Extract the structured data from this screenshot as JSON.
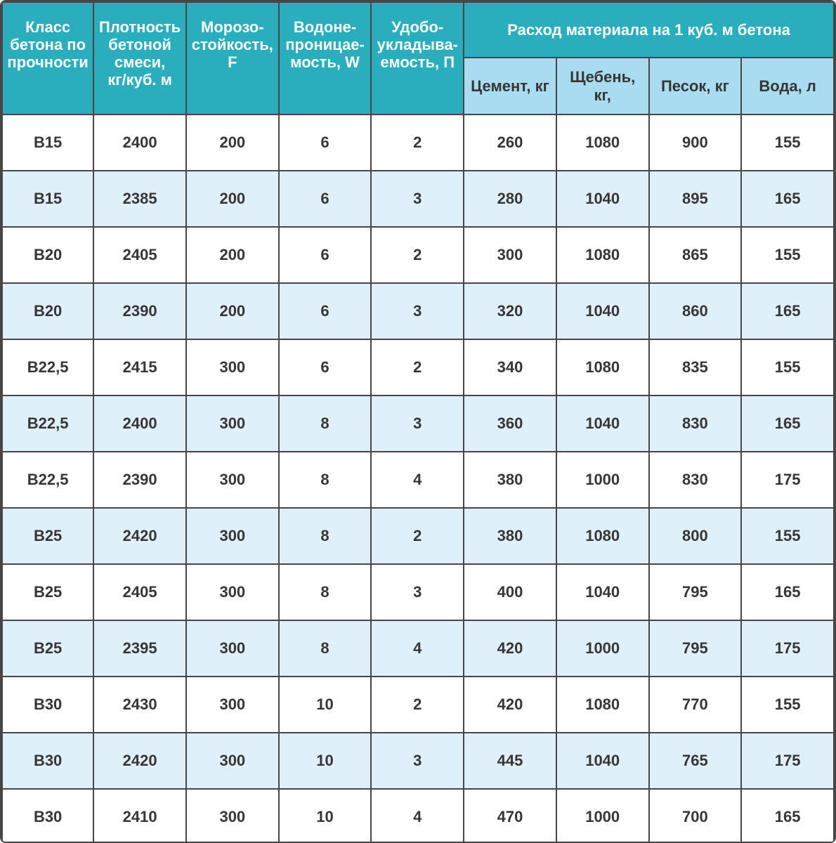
{
  "colors": {
    "header_teal": "#2aadbd",
    "subheader_blue": "#a9dbf1",
    "row_stripe_blue": "#dff0fa",
    "row_white": "#ffffff",
    "grid_border": "#464646",
    "header_text": "#ffffff",
    "cell_text": "#363636"
  },
  "table": {
    "headers": [
      "Класс\nбетона по\nпрочности",
      "Плотность\nбетоной\nсмеси,\nкг/куб. м",
      "Морозо-\nстойкость,\nF",
      "Водоне-\nпроницае-\nмость, W",
      "Удобо-\nукладыва-\nемость, П"
    ],
    "group_header": "Расход материала на 1 куб. м бетона",
    "sub_headers": [
      "Цемент, кг",
      "Щебень, кг,",
      "Песок, кг",
      "Вода, л"
    ],
    "rows": [
      [
        "В15",
        "2400",
        "200",
        "6",
        "2",
        "260",
        "1080",
        "900",
        "155"
      ],
      [
        "В15",
        "2385",
        "200",
        "6",
        "3",
        "280",
        "1040",
        "895",
        "165"
      ],
      [
        "В20",
        "2405",
        "200",
        "6",
        "2",
        "300",
        "1080",
        "865",
        "155"
      ],
      [
        "В20",
        "2390",
        "200",
        "6",
        "3",
        "320",
        "1040",
        "860",
        "165"
      ],
      [
        "В22,5",
        "2415",
        "300",
        "6",
        "2",
        "340",
        "1080",
        "835",
        "155"
      ],
      [
        "В22,5",
        "2400",
        "300",
        "8",
        "3",
        "360",
        "1040",
        "830",
        "165"
      ],
      [
        "В22,5",
        "2390",
        "300",
        "8",
        "4",
        "380",
        "1000",
        "830",
        "175"
      ],
      [
        "В25",
        "2420",
        "300",
        "8",
        "2",
        "380",
        "1080",
        "800",
        "155"
      ],
      [
        "В25",
        "2405",
        "300",
        "8",
        "3",
        "400",
        "1040",
        "795",
        "165"
      ],
      [
        "В25",
        "2395",
        "300",
        "8",
        "4",
        "420",
        "1000",
        "795",
        "175"
      ],
      [
        "В30",
        "2430",
        "300",
        "10",
        "2",
        "420",
        "1080",
        "770",
        "155"
      ],
      [
        "В30",
        "2420",
        "300",
        "10",
        "3",
        "445",
        "1040",
        "765",
        "175"
      ],
      [
        "В30",
        "2410",
        "300",
        "10",
        "4",
        "470",
        "1000",
        "700",
        "165"
      ]
    ]
  },
  "chart_data": {
    "type": "table",
    "title": "Расход материала на 1 куб. м бетона",
    "columns": [
      "Класс бетона по прочности",
      "Плотность бетоной смеси, кг/куб. м",
      "Морозостойкость, F",
      "Водонепроницаемость, W",
      "Удобоукладываемость, П",
      "Цемент, кг",
      "Щебень, кг,",
      "Песок, кг",
      "Вода, л"
    ],
    "rows": [
      [
        "В15",
        2400,
        200,
        6,
        2,
        260,
        1080,
        900,
        155
      ],
      [
        "В15",
        2385,
        200,
        6,
        3,
        280,
        1040,
        895,
        165
      ],
      [
        "В20",
        2405,
        200,
        6,
        2,
        300,
        1080,
        865,
        155
      ],
      [
        "В20",
        2390,
        200,
        6,
        3,
        320,
        1040,
        860,
        165
      ],
      [
        "В22,5",
        2415,
        300,
        6,
        2,
        340,
        1080,
        835,
        155
      ],
      [
        "В22,5",
        2400,
        300,
        8,
        3,
        360,
        1040,
        830,
        165
      ],
      [
        "В22,5",
        2390,
        300,
        8,
        4,
        380,
        1000,
        830,
        175
      ],
      [
        "В25",
        2420,
        300,
        8,
        2,
        380,
        1080,
        800,
        155
      ],
      [
        "В25",
        2405,
        300,
        8,
        3,
        400,
        1040,
        795,
        165
      ],
      [
        "В25",
        2395,
        300,
        8,
        4,
        420,
        1000,
        795,
        175
      ],
      [
        "В30",
        2430,
        300,
        10,
        2,
        420,
        1080,
        770,
        155
      ],
      [
        "В30",
        2420,
        300,
        10,
        3,
        445,
        1040,
        765,
        175
      ],
      [
        "В30",
        2410,
        300,
        10,
        4,
        470,
        1000,
        700,
        165
      ]
    ]
  }
}
